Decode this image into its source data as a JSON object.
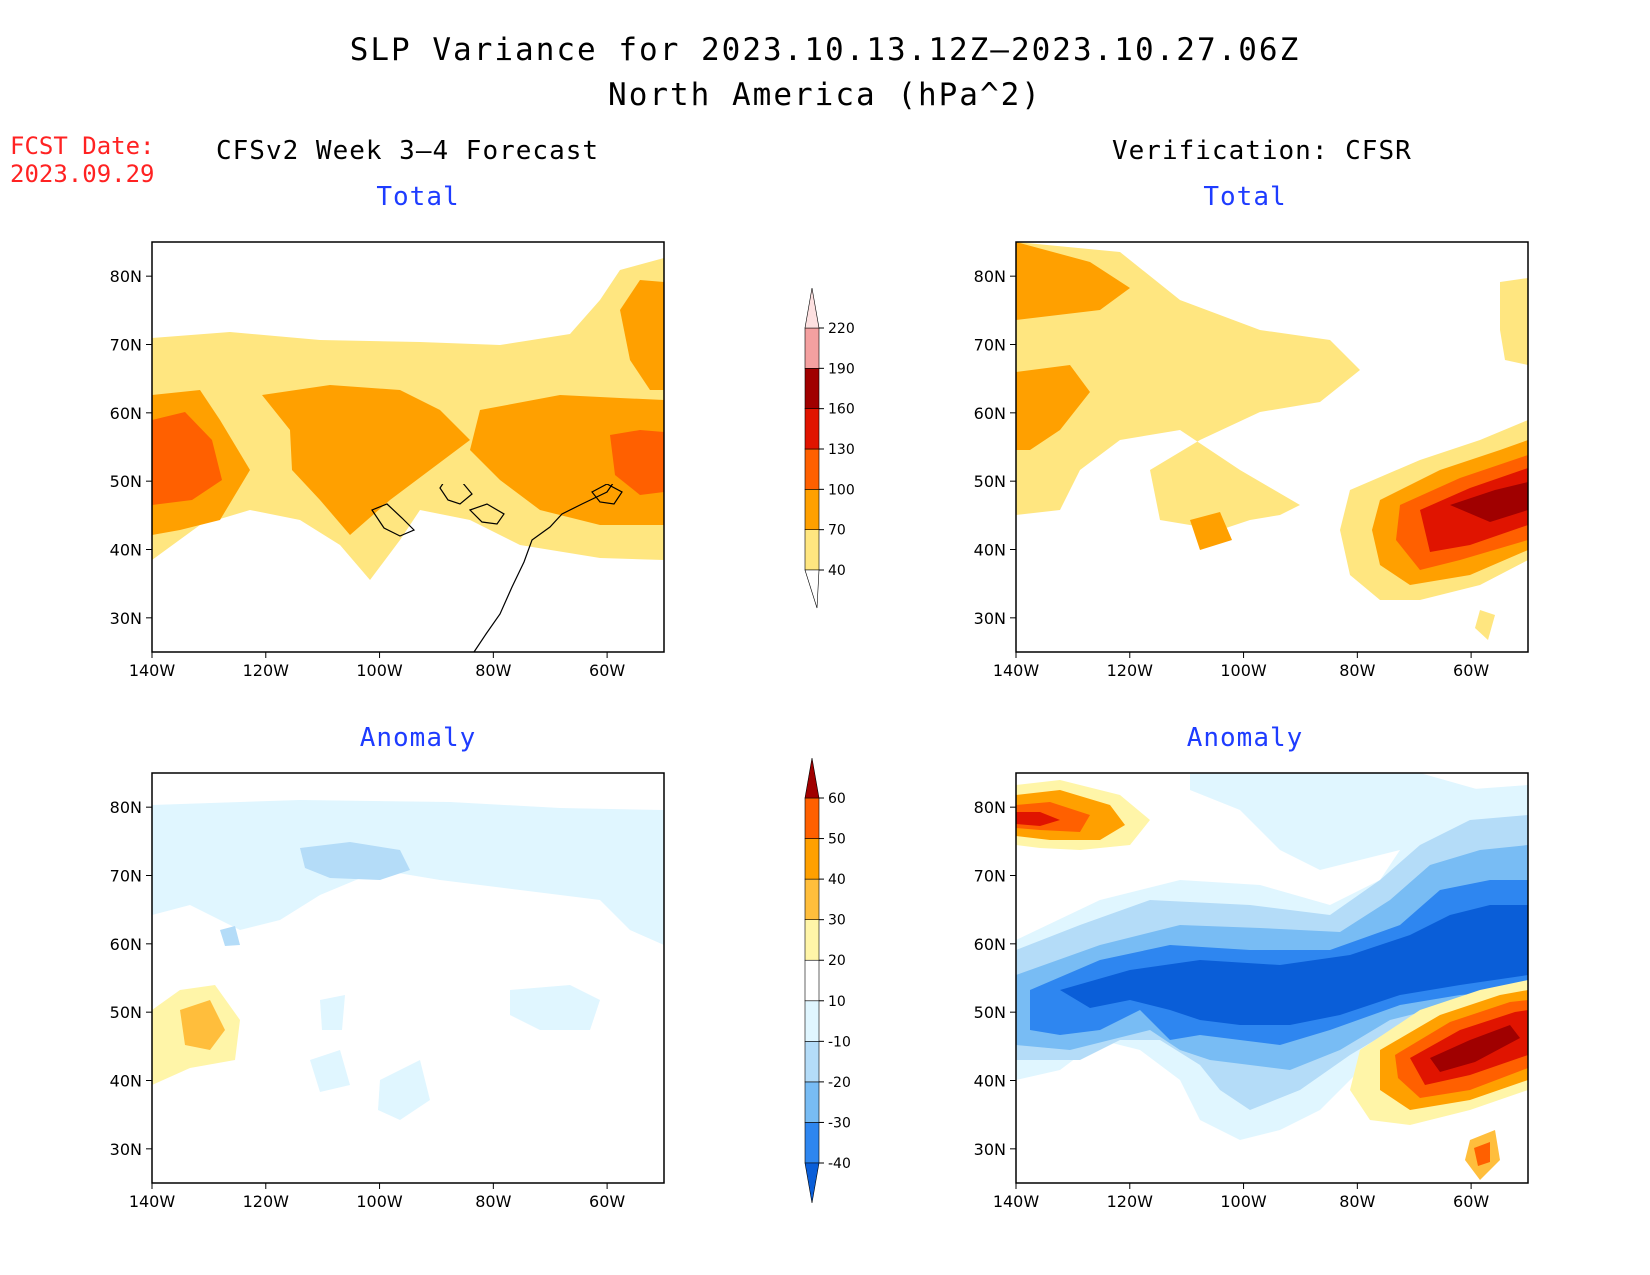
{
  "title": "SLP Variance for 2023.10.13.12Z–2023.10.27.06Z",
  "subtitle": "North America (hPa^2)",
  "fcst_label": "FCST Date:",
  "fcst_date": "2023.09.29",
  "left_column_title": "CFSv2 Week 3–4 Forecast",
  "right_column_title": "Verification: CFSR",
  "map_axes": {
    "lat_labels": [
      "80N",
      "70N",
      "60N",
      "50N",
      "40N",
      "30N"
    ],
    "lon_labels": [
      "140W",
      "120W",
      "100W",
      "80W",
      "60W"
    ]
  },
  "panels": [
    {
      "id": "forecast-total",
      "title": "Total"
    },
    {
      "id": "verification-total",
      "title": "Total"
    },
    {
      "id": "forecast-anomaly",
      "title": "Anomaly"
    },
    {
      "id": "verification-anomaly",
      "title": "Anomaly"
    }
  ],
  "colorbars": {
    "total": {
      "labels": [
        "40",
        "70",
        "100",
        "130",
        "160",
        "190",
        "220"
      ],
      "colors": [
        "#ffe680",
        "#ffa000",
        "#ff6000",
        "#e01400",
        "#a00000",
        "#f4a0a0",
        "#fde0e0"
      ]
    },
    "anomaly": {
      "labels": [
        "-40",
        "-30",
        "-20",
        "-10",
        "10",
        "20",
        "30",
        "40",
        "50",
        "60"
      ],
      "colors": [
        "#0a5ed8",
        "#2e86f0",
        "#78bcf4",
        "#b4dcf8",
        "#e0f6ff",
        "#ffffff",
        "#fff5a8",
        "#ffbe3c",
        "#ffa000",
        "#ff6000",
        "#e01400",
        "#a00000"
      ]
    }
  }
}
